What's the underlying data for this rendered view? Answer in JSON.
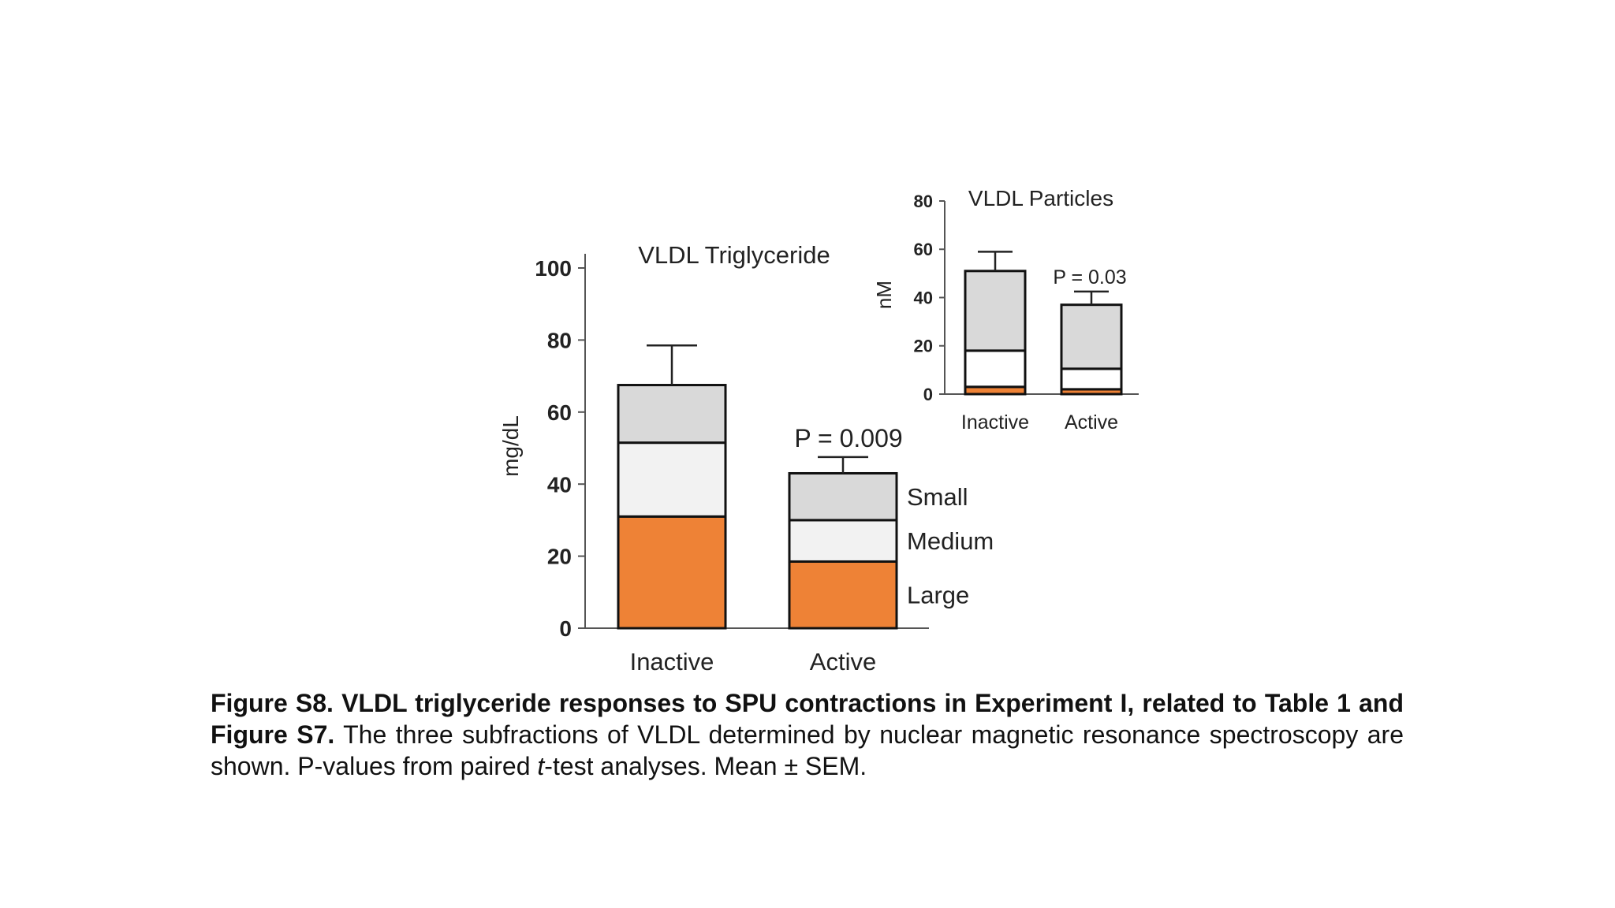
{
  "chart_data": [
    {
      "type": "bar",
      "stacked": true,
      "title": "VLDL Triglyceride",
      "ylabel": "mg/dL",
      "xlabel": "",
      "ylim": [
        0,
        100
      ],
      "yticks": [
        0,
        20,
        40,
        60,
        80,
        100
      ],
      "categories": [
        "Inactive",
        "Active"
      ],
      "series": [
        {
          "name": "Large",
          "values": [
            31,
            18.5
          ],
          "color": "#ee8236"
        },
        {
          "name": "Medium",
          "values": [
            20.5,
            11.5
          ],
          "color": "#f2f2f2"
        },
        {
          "name": "Small",
          "values": [
            16,
            13
          ],
          "color": "#d9d9d9"
        }
      ],
      "error_bars": [
        11,
        4.5
      ],
      "annotation": "P = 0.009",
      "legend": [
        "Small",
        "Medium",
        "Large"
      ]
    },
    {
      "type": "bar",
      "stacked": true,
      "title": "VLDL Particles",
      "ylabel": "nM",
      "xlabel": "",
      "ylim": [
        0,
        80
      ],
      "yticks": [
        0,
        20,
        40,
        60,
        80
      ],
      "categories": [
        "Inactive",
        "Active"
      ],
      "series": [
        {
          "name": "Large",
          "values": [
            3,
            2
          ],
          "color": "#ee8236"
        },
        {
          "name": "Medium",
          "values": [
            15,
            8.5
          ],
          "color": "#ffffff"
        },
        {
          "name": "Small",
          "values": [
            33,
            26.5
          ],
          "color": "#d9d9d9"
        }
      ],
      "error_bars": [
        8,
        5.5
      ],
      "annotation": "P = 0.03"
    }
  ],
  "caption": {
    "bold": "Figure S8. VLDL triglyceride responses to SPU contractions in Experiment I, related to Table 1 and Figure S7.",
    "text1": " The three subfractions of VLDL determined by nuclear magnetic resonance spectroscopy are shown. P-values from paired ",
    "italic": "t",
    "text2": "-test analyses. Mean ± SEM."
  }
}
